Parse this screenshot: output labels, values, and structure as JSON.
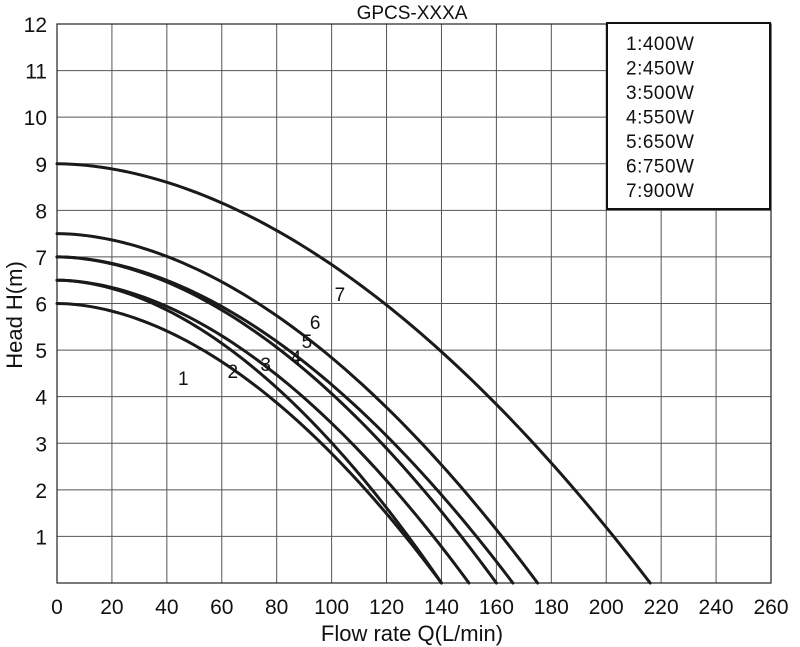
{
  "chart_data": {
    "type": "line",
    "title": "GPCS-XXXA",
    "xlabel": "Flow rate Q(L/min)",
    "ylabel": "Head H(m)",
    "xlim": [
      0,
      260
    ],
    "ylim": [
      0,
      12
    ],
    "x_ticks": [
      "0",
      "20",
      "40",
      "60",
      "80",
      "100",
      "120",
      "140",
      "160",
      "180",
      "200",
      "220",
      "240",
      "260"
    ],
    "y_ticks": [
      "1",
      "2",
      "3",
      "4",
      "5",
      "6",
      "7",
      "8",
      "9",
      "10",
      "11",
      "12"
    ],
    "grid": true,
    "legend_position": "top-right",
    "legend": [
      "1:400W",
      "2:450W",
      "3:500W",
      "4:550W",
      "5:650W",
      "6:750W",
      "7:900W"
    ],
    "series": [
      {
        "name": "1",
        "shutoff_head": 6.0,
        "max_flow": 140,
        "label_at": [
          46,
          4.4
        ]
      },
      {
        "name": "2",
        "shutoff_head": 6.5,
        "max_flow": 140,
        "label_at": [
          64,
          4.55
        ]
      },
      {
        "name": "3",
        "shutoff_head": 6.5,
        "max_flow": 150,
        "label_at": [
          76,
          4.7
        ]
      },
      {
        "name": "4",
        "shutoff_head": 7.0,
        "max_flow": 160,
        "label_at": [
          87,
          4.85
        ]
      },
      {
        "name": "5",
        "shutoff_head": 7.0,
        "max_flow": 166,
        "label_at": [
          91,
          5.2
        ]
      },
      {
        "name": "6",
        "shutoff_head": 7.5,
        "max_flow": 175,
        "label_at": [
          94,
          5.6
        ]
      },
      {
        "name": "7",
        "shutoff_head": 9.0,
        "max_flow": 216,
        "label_at": [
          103,
          6.2
        ]
      }
    ]
  }
}
